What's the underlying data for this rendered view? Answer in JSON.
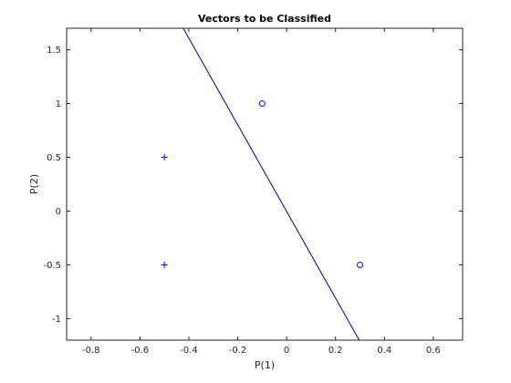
{
  "chart_data": {
    "type": "scatter",
    "title": "Vectors to be Classified",
    "xlabel": "P(1)",
    "ylabel": "P(2)",
    "xlim": [
      -0.9,
      0.72
    ],
    "ylim": [
      -1.2,
      1.7
    ],
    "xticks": [
      -0.8,
      -0.6,
      -0.4,
      -0.2,
      0,
      0.2,
      0.4,
      0.6
    ],
    "xtick_labels": [
      "-0.8",
      "-0.6",
      "-0.4",
      "-0.2",
      "0",
      "0.2",
      "0.4",
      "0.6"
    ],
    "yticks": [
      -1,
      -0.5,
      0,
      0.5,
      1,
      1.5
    ],
    "ytick_labels": [
      "-1",
      "-0.5",
      "0",
      "0.5",
      "1",
      "1.5"
    ],
    "grid": false,
    "series": [
      {
        "marker": "plus",
        "color": "#0000ff",
        "points": [
          {
            "x": -0.5,
            "y": 0.5
          },
          {
            "x": -0.5,
            "y": -0.5
          }
        ]
      },
      {
        "marker": "circle",
        "color": "#0000ff",
        "points": [
          {
            "x": -0.1,
            "y": 1.0
          },
          {
            "x": 0.3,
            "y": -0.5
          }
        ]
      }
    ],
    "decision_line": {
      "color": "#00008b",
      "points": [
        {
          "x": -0.4229,
          "y": 1.7
        },
        {
          "x": 0.2971,
          "y": -1.2
        }
      ]
    }
  }
}
